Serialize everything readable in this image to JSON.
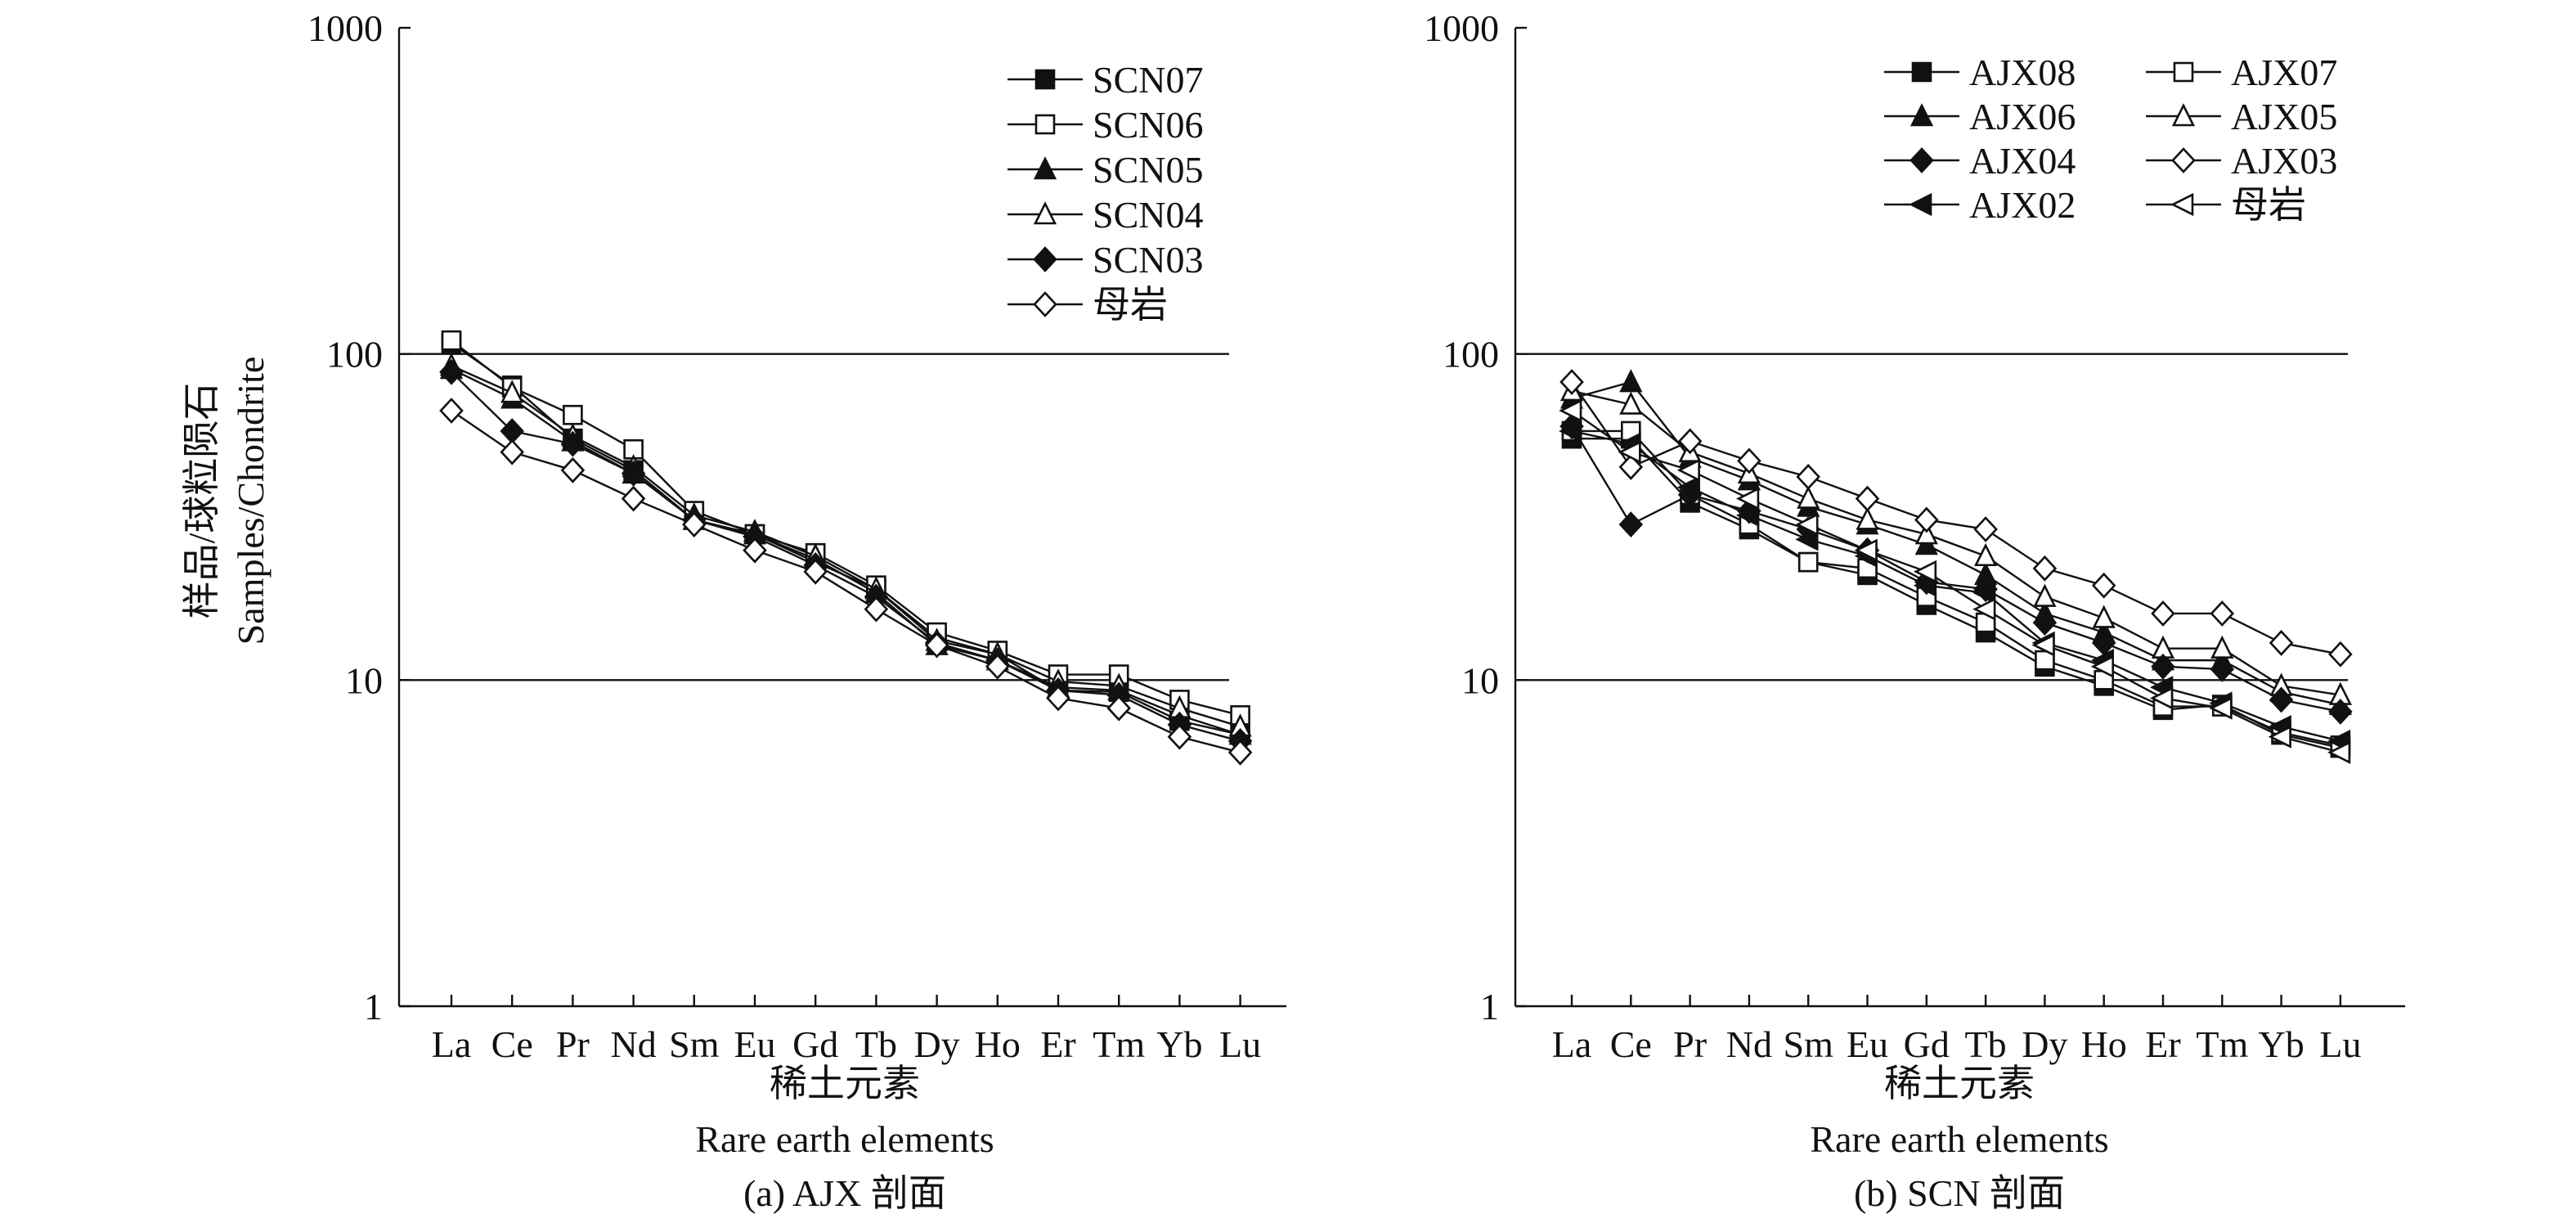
{
  "figure": {
    "ylabel_cn": "样品/球粒陨石",
    "ylabel_en": "Samples/Chondrite"
  },
  "chart_data": [
    {
      "type": "line",
      "yscale": "log",
      "ylim": [
        1,
        1000
      ],
      "yticks": [
        "1",
        "10",
        "100",
        "1000"
      ],
      "hlines": [
        10,
        100
      ],
      "categories": [
        "La",
        "Ce",
        "Pr",
        "Nd",
        "Sm",
        "Eu",
        "Gd",
        "Tb",
        "Dy",
        "Ho",
        "Er",
        "Tm",
        "Yb",
        "Lu"
      ],
      "xlabel_cn": "稀土元素",
      "xlabel_en": "Rare earth elements",
      "caption": "(a) AJX 剖面",
      "legend_position": "top-right",
      "series": [
        {
          "name": "SCN07",
          "marker": "square-filled",
          "values": [
            108,
            80,
            55,
            44,
            31,
            28,
            23,
            19,
            13.5,
            12,
            9.3,
            9.2,
            7.5,
            6.8
          ]
        },
        {
          "name": "SCN06",
          "marker": "square-open",
          "values": [
            110,
            79,
            65,
            51,
            33,
            28,
            24.5,
            19.5,
            14,
            12.3,
            10.4,
            10.4,
            8.7,
            7.8
          ]
        },
        {
          "name": "SCN05",
          "marker": "triangle-filled",
          "values": [
            90,
            73,
            54,
            43,
            31,
            28,
            23.5,
            18.5,
            12.8,
            11.5,
            9.5,
            9.3,
            7.8,
            6.8
          ]
        },
        {
          "name": "SCN04",
          "marker": "triangle-open",
          "values": [
            92,
            76,
            56,
            45,
            32,
            28.5,
            24,
            19,
            13.2,
            12,
            9.9,
            9.6,
            8.2,
            7.2
          ]
        },
        {
          "name": "SCN03",
          "marker": "diamond-filled",
          "values": [
            88,
            58,
            53,
            43,
            31,
            27.5,
            22.5,
            18,
            13,
            11.5,
            9.3,
            9.0,
            7.3,
            6.5
          ]
        },
        {
          "name": "母岩",
          "marker": "diamond-open",
          "values": [
            67,
            50,
            44,
            36,
            30,
            25,
            21.5,
            16.5,
            12.8,
            11,
            8.8,
            8.2,
            6.7,
            6.0
          ]
        }
      ]
    },
    {
      "type": "line",
      "yscale": "log",
      "ylim": [
        1,
        1000
      ],
      "yticks": [
        "1",
        "10",
        "100",
        "1000"
      ],
      "hlines": [
        10,
        100
      ],
      "categories": [
        "La",
        "Ce",
        "Pr",
        "Nd",
        "Sm",
        "Eu",
        "Gd",
        "Tb",
        "Dy",
        "Ho",
        "Er",
        "Tm",
        "Yb",
        "Lu"
      ],
      "xlabel_cn": "稀土元素",
      "xlabel_en": "Rare earth elements",
      "caption": "(b) SCN 剖面",
      "legend_position": "top-right",
      "series": [
        {
          "name": "AJX08",
          "marker": "square-filled",
          "values": [
            55,
            55,
            35,
            29,
            23,
            21,
            17,
            14,
            11,
            9.6,
            8.1,
            8.4,
            6.8,
            6.2
          ]
        },
        {
          "name": "AJX07",
          "marker": "square-open",
          "values": [
            58,
            58,
            37,
            30,
            23,
            22,
            18,
            15,
            11.5,
            10,
            8.3,
            8.3,
            6.9,
            6.3
          ]
        },
        {
          "name": "AJX06",
          "marker": "triangle-filled",
          "values": [
            73,
            82,
            48,
            41,
            34,
            30,
            26,
            21,
            16,
            14,
            11.5,
            11.5,
            9.2,
            8.4
          ]
        },
        {
          "name": "AJX05",
          "marker": "triangle-open",
          "values": [
            77,
            70,
            50,
            43,
            36,
            31,
            28,
            24,
            18,
            15.5,
            12.5,
            12.5,
            9.6,
            9.0
          ]
        },
        {
          "name": "AJX04",
          "marker": "diamond-filled",
          "values": [
            60,
            30,
            37,
            33,
            29,
            25,
            20,
            19,
            15,
            13,
            11,
            10.8,
            8.7,
            8.0
          ]
        },
        {
          "name": "AJX03",
          "marker": "diamond-open",
          "values": [
            82,
            45,
            54,
            47,
            42,
            36,
            31,
            29,
            22,
            19.5,
            16,
            16,
            13,
            12
          ]
        },
        {
          "name": "AJX02",
          "marker": "left-triangle-filled",
          "values": [
            58,
            53,
            39,
            32,
            27,
            24,
            19.5,
            18.5,
            13,
            11.5,
            9.5,
            8.5,
            7.2,
            6.5
          ]
        },
        {
          "name": "母岩",
          "marker": "left-triangle-open",
          "values": [
            67,
            50,
            44,
            36,
            30,
            25,
            21.5,
            16.5,
            12.8,
            11,
            8.8,
            8.2,
            6.7,
            6.0
          ]
        }
      ]
    }
  ]
}
